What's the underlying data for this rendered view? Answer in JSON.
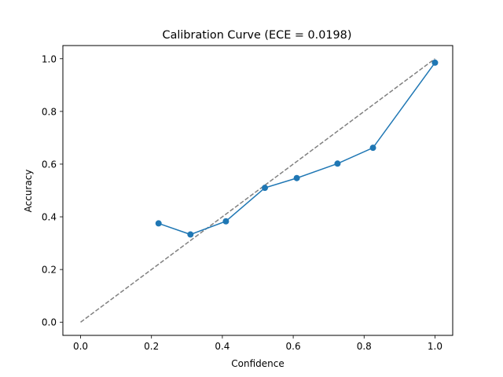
{
  "chart_data": {
    "type": "line",
    "title": "Calibration Curve (ECE = 0.0198)",
    "xlabel": "Confidence",
    "ylabel": "Accuracy",
    "xlim": [
      -0.05,
      1.05
    ],
    "ylim": [
      -0.05,
      1.05
    ],
    "xticks": [
      "0.0",
      "0.2",
      "0.4",
      "0.6",
      "0.8",
      "1.0"
    ],
    "yticks": [
      "0.0",
      "0.2",
      "0.4",
      "0.6",
      "0.8",
      "1.0"
    ],
    "grid": false,
    "series": [
      {
        "x": [
          0.22,
          0.31,
          0.41,
          0.52,
          0.61,
          0.725,
          0.825,
          1.0
        ],
        "y": [
          0.375,
          0.333,
          0.383,
          0.51,
          0.547,
          0.602,
          0.662,
          0.985
        ],
        "color": "#1f77b4",
        "marker": "circle",
        "linestyle": "solid"
      },
      {
        "x": [
          0.0,
          1.0
        ],
        "y": [
          0.0,
          1.0
        ],
        "color": "#808080",
        "linestyle": "dashed"
      }
    ]
  }
}
